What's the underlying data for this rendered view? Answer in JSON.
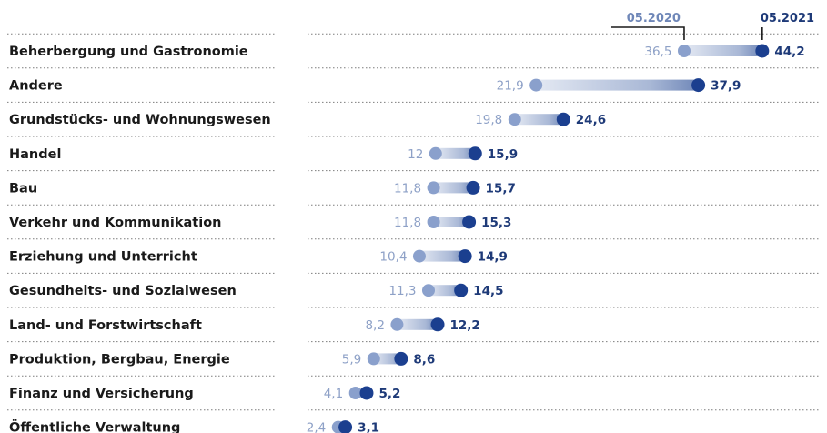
{
  "chart_data": {
    "type": "dumbbell",
    "legend": {
      "old": "05.2020",
      "new": "05.2021"
    },
    "series_names": [
      "05.2020",
      "05.2021"
    ],
    "categories": [
      "Beherbergung und Gastronomie",
      "Andere",
      "Grundstücks- und Wohnungswesen",
      "Handel",
      "Bau",
      "Verkehr und Kommunikation",
      "Erziehung und Unterricht",
      "Gesundheits- und Sozialwesen",
      "Land- und Forstwirtschaft",
      "Produktion, Bergbau, Energie",
      "Finanz und Versicherung",
      "Öffentliche Verwaltung"
    ],
    "values_old": [
      36.5,
      21.9,
      19.8,
      12,
      11.8,
      11.8,
      10.4,
      11.3,
      8.2,
      5.9,
      4.1,
      2.4
    ],
    "values_new": [
      44.2,
      37.9,
      24.6,
      15.9,
      15.7,
      15.3,
      14.9,
      14.5,
      12.2,
      8.6,
      5.2,
      3.1
    ],
    "labels_old": [
      "36,5",
      "21,9",
      "19,8",
      "12",
      "11,8",
      "11,8",
      "10,4",
      "11,3",
      "8,2",
      "5,9",
      "4,1",
      "2,4"
    ],
    "labels_new": [
      "44,2",
      "37,9",
      "24,6",
      "15,9",
      "15,7",
      "15,3",
      "14,9",
      "14,5",
      "12,2",
      "8,6",
      "5,2",
      "3,1"
    ],
    "grid": "dotted row separators",
    "legend_placement": "top-right",
    "colors": {
      "old": "#8ea1c7",
      "new": "#1e3a78",
      "bar_light": "#dde4f1",
      "dot_old": "#8aa0cc",
      "dot_new": "#1b3f8f"
    }
  }
}
